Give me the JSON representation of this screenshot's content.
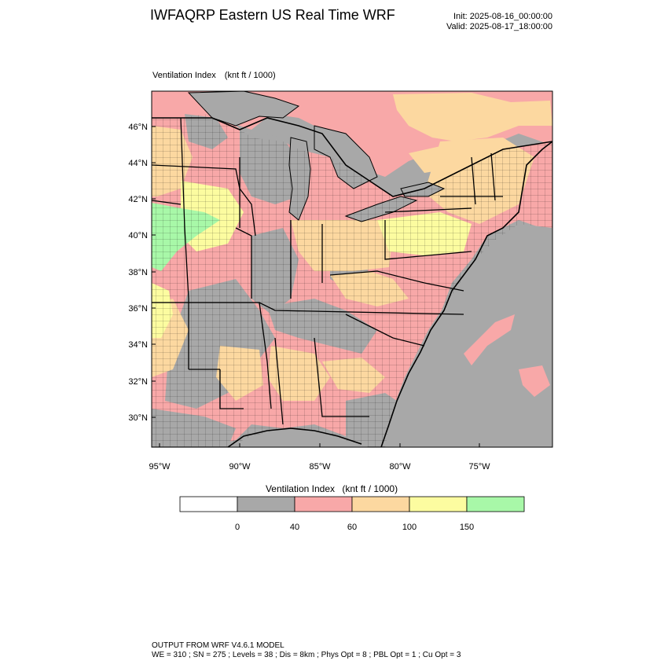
{
  "header": {
    "title": "IWFAQRP Eastern US Real Time WRF",
    "init": "Init: 2025-08-16_00:00:00",
    "valid": "Valid: 2025-08-17_18:00:00"
  },
  "panel": {
    "field_name": "Ventilation Index",
    "units": "(knt ft / 1000)"
  },
  "map": {
    "lat_labels": [
      "46°N",
      "44°N",
      "42°N",
      "40°N",
      "38°N",
      "36°N",
      "34°N",
      "32°N",
      "30°N"
    ],
    "lon_labels": [
      "95°W",
      "90°W",
      "85°W",
      "80°W",
      "75°W"
    ],
    "colors": {
      "land_low": "#a8a8a8",
      "lake": "#a8a8a8",
      "ocean": "#a8a8a8",
      "pink": "#f8a8a8",
      "orange": "#fcd8a0",
      "yellow": "#fcfca0",
      "green": "#a8f8a8",
      "border": "#000000"
    }
  },
  "colorbar": {
    "title": "Ventilation Index",
    "units": "(knt ft / 1000)",
    "boxes": [
      "#ffffff",
      "#a8a8a8",
      "#f8a8a8",
      "#fcd8a0",
      "#fcfca0",
      "#a8f8a8"
    ],
    "labels": [
      "0",
      "40",
      "60",
      "100",
      "150"
    ]
  },
  "footer": {
    "line1": "OUTPUT FROM WRF V4.6.1 MODEL",
    "line2": "WE = 310 ; SN = 275 ; Levels = 38 ; Dis = 8km ; Phys Opt = 8 ; PBL Opt = 1 ; Cu Opt = 3"
  }
}
